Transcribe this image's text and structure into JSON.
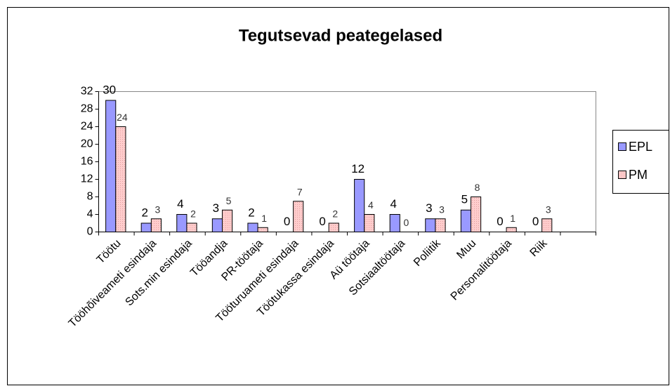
{
  "chart_data": {
    "type": "bar",
    "title": "Tegutsevad peategelased",
    "categories": [
      "Töötu",
      "Tööhõiveameti esindaja",
      "Sots.min esindaja",
      "Tööandja",
      "PR-töötaja",
      "Tööturuameti esindaja",
      "Töötukassa esindaja",
      "Aü töötaja",
      "Sotsiaaltöötaja",
      "Poliitik",
      "Muu",
      "Personalitöötaja",
      "Riik",
      null
    ],
    "series": [
      {
        "name": "EPL",
        "color": "#9999ff",
        "values": [
          30,
          2,
          4,
          3,
          2,
          0,
          0,
          12,
          4,
          3,
          5,
          0,
          0,
          null
        ]
      },
      {
        "name": "PM",
        "color": "#ffcccc",
        "values": [
          24,
          3,
          2,
          5,
          1,
          7,
          2,
          4,
          0,
          3,
          8,
          1,
          3,
          null
        ]
      }
    ],
    "ylim": [
      0,
      32
    ],
    "yticks": [
      0,
      4,
      8,
      12,
      16,
      20,
      24,
      28,
      32
    ],
    "grid": false,
    "legend": "right"
  }
}
